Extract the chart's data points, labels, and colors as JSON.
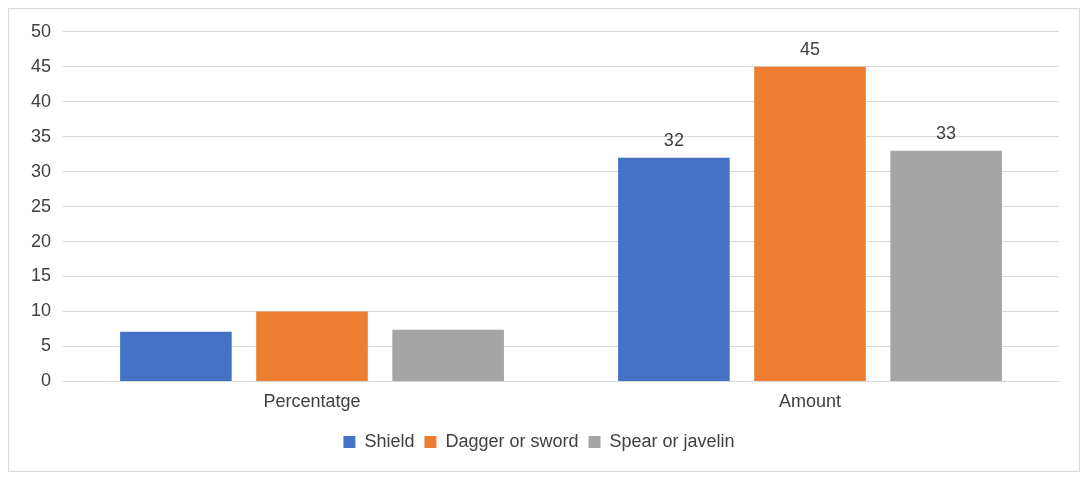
{
  "chart_data": {
    "type": "bar",
    "categories": [
      "Percentatge",
      "Amount"
    ],
    "series": [
      {
        "name": "Shield",
        "color": "#4472c4",
        "values": [
          7.1,
          32
        ],
        "value_labels": [
          null,
          "32"
        ]
      },
      {
        "name": "Dagger or sword",
        "color": "#ed7d31",
        "values": [
          10,
          45
        ],
        "value_labels": [
          null,
          "45"
        ]
      },
      {
        "name": "Spear or javelin",
        "color": "#a5a5a5",
        "values": [
          7.4,
          33
        ],
        "value_labels": [
          null,
          "33"
        ]
      }
    ],
    "ylim": [
      0,
      50
    ],
    "yticks": [
      0,
      5,
      10,
      15,
      20,
      25,
      30,
      35,
      40,
      45,
      50
    ],
    "grid": "y",
    "legend": "bottom"
  }
}
